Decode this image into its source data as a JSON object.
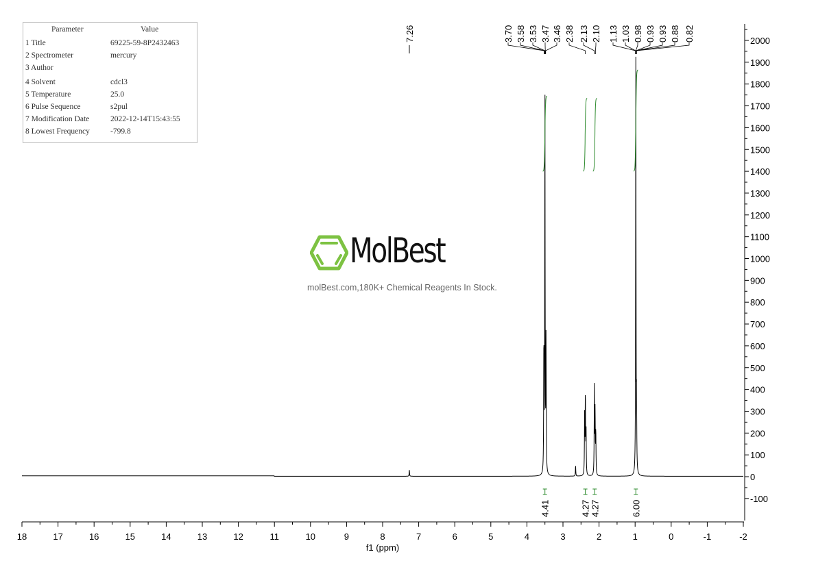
{
  "parameters": {
    "header": {
      "key": "Parameter",
      "value": "Value"
    },
    "rows": [
      {
        "key": "1 Title",
        "value": "69225-59-8P2432463"
      },
      {
        "key": "2 Spectrometer",
        "value": "mercury"
      },
      {
        "key": "3 Author",
        "value": ""
      },
      {
        "key": "4 Solvent",
        "value": "cdcl3"
      },
      {
        "key": "5 Temperature",
        "value": "25.0"
      },
      {
        "key": "6 Pulse Sequence",
        "value": "s2pul"
      },
      {
        "key": "7 Modification Date",
        "value": "2022-12-14T15:43:55"
      },
      {
        "key": "8 Lowest Frequency",
        "value": "-799.8"
      }
    ]
  },
  "watermark": {
    "logo_text": "MolBest",
    "tagline": "molBest.com,180K+ Chemical Reagents In Stock."
  },
  "colors": {
    "spectrum": "#000000",
    "integral": "#2e8b2e",
    "logo_green": "#7dc242"
  },
  "chart_data": {
    "type": "line",
    "title": "",
    "xlabel": "f1 (ppm)",
    "ylabel": "",
    "xlim": [
      18,
      -2
    ],
    "ylim": [
      -150,
      2100
    ],
    "x_ticks": [
      18,
      17,
      16,
      15,
      14,
      13,
      12,
      11,
      10,
      9,
      8,
      7,
      6,
      5,
      4,
      3,
      2,
      1,
      0,
      -1,
      -2
    ],
    "y_ticks": [
      -100,
      0,
      100,
      200,
      300,
      400,
      500,
      600,
      700,
      800,
      900,
      1000,
      1100,
      1200,
      1300,
      1400,
      1500,
      1600,
      1700,
      1800,
      1900,
      2000
    ],
    "peaks": [
      {
        "ppm": 7.26,
        "height": 30
      },
      {
        "ppm": 3.53,
        "height": 600
      },
      {
        "ppm": 3.5,
        "height": 1745
      },
      {
        "ppm": 3.47,
        "height": 600
      },
      {
        "ppm": 2.65,
        "height": 50
      },
      {
        "ppm": 2.4,
        "height": 280
      },
      {
        "ppm": 2.38,
        "height": 370
      },
      {
        "ppm": 2.36,
        "height": 210
      },
      {
        "ppm": 2.13,
        "height": 400
      },
      {
        "ppm": 2.11,
        "height": 290
      },
      {
        "ppm": 2.09,
        "height": 200
      },
      {
        "ppm": 0.98,
        "height": 1900
      },
      {
        "ppm": 0.96,
        "height": 280
      }
    ],
    "peak_labels_isolated": [
      "7.26"
    ],
    "peak_labels_group": [
      "3.70",
      "3.58",
      "3.53",
      "3.47",
      "3.46",
      "2.38",
      "2.13",
      "2.10",
      "1.13",
      "1.03",
      "0.98",
      "0.93",
      "0.93",
      "0.88",
      "0.82"
    ],
    "peak_label_ppm_group": [
      3.52,
      3.51,
      3.5,
      3.49,
      3.48,
      2.38,
      2.13,
      2.1,
      0.99,
      0.985,
      0.98,
      0.975,
      0.97,
      0.965,
      0.96
    ],
    "integrals": [
      {
        "ppm_from": 3.56,
        "ppm_to": 3.44,
        "label_ppm": 3.5,
        "value": "4.41",
        "curve_bottom": 1400,
        "curve_top": 1745
      },
      {
        "ppm_from": 2.44,
        "ppm_to": 2.33,
        "label_ppm": 2.38,
        "value": "4.27",
        "curve_bottom": 1400,
        "curve_top": 1735
      },
      {
        "ppm_from": 2.17,
        "ppm_to": 2.06,
        "label_ppm": 2.12,
        "value": "4.27",
        "curve_bottom": 1400,
        "curve_top": 1735
      },
      {
        "ppm_from": 1.04,
        "ppm_to": 0.92,
        "label_ppm": 0.98,
        "value": "6.00",
        "curve_bottom": 1400,
        "curve_top": 1865
      }
    ]
  }
}
